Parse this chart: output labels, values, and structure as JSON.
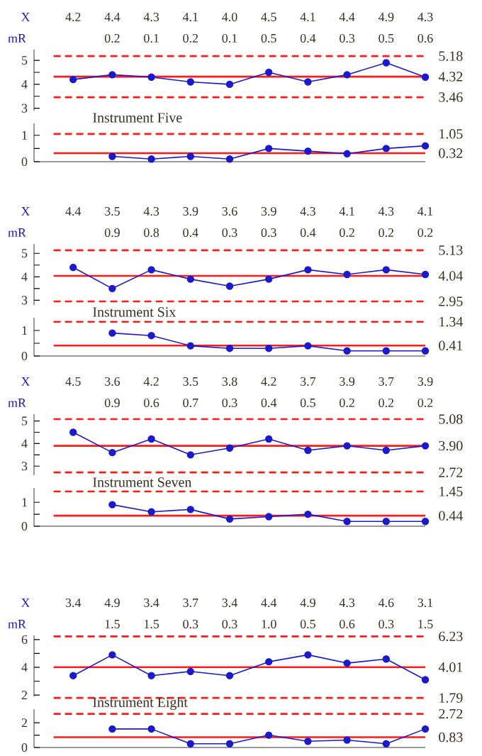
{
  "chart_data": [
    {
      "type": "line",
      "title": "Instrument Five",
      "categories": [
        null,
        null,
        null,
        null,
        null,
        null,
        null,
        null,
        null,
        null
      ],
      "series": [
        {
          "name": "X",
          "color": "#1a1acc",
          "values": [
            4.2,
            4.4,
            4.3,
            4.1,
            4.0,
            4.5,
            4.1,
            4.4,
            4.9,
            4.3
          ],
          "value_labels": [
            "4.2",
            "4.4",
            "4.3",
            "4.1",
            "4.0",
            "4.5",
            "4.1",
            "4.4",
            "4.9",
            "4.3"
          ]
        }
      ],
      "ylim": [
        2.9,
        5.45
      ],
      "yticks": [
        3,
        {
          "value": 3.5,
          "label": null
        },
        4,
        {
          "value": 4.5,
          "label": null
        },
        5
      ],
      "ref_lines": [
        {
          "axis": "y",
          "value": 5.18,
          "label": "5.18",
          "color": "#ff1a1a",
          "line_style": "dashed"
        },
        {
          "axis": "y",
          "value": 4.32,
          "label": "4.32",
          "color": "#ff1a1a",
          "line_style": "solid"
        },
        {
          "axis": "y",
          "value": 3.46,
          "label": "3.46",
          "color": "#ff1a1a",
          "line_style": "dashed"
        }
      ],
      "tick_labels": "y",
      "marker": "circle",
      "line_style": "solid"
    },
    {
      "type": "line",
      "categories": [
        null,
        null,
        null,
        null,
        null,
        null,
        null,
        null,
        null,
        null
      ],
      "series": [
        {
          "name": "mR",
          "color": "#1a1acc",
          "values": [
            null,
            0.2,
            0.1,
            0.2,
            0.1,
            0.5,
            0.4,
            0.3,
            0.5,
            0.6
          ],
          "value_labels": [
            null,
            "0.2",
            "0.1",
            "0.2",
            "0.1",
            "0.5",
            "0.4",
            "0.3",
            "0.5",
            "0.6"
          ]
        }
      ],
      "ylim": [
        0,
        1.45
      ],
      "yticks": [
        0,
        {
          "value": 0.5,
          "label": null
        },
        1
      ],
      "ref_lines": [
        {
          "axis": "y",
          "value": 1.05,
          "label": "1.05",
          "color": "#ff1a1a",
          "line_style": "dashed"
        },
        {
          "axis": "y",
          "value": 0.32,
          "label": "0.32",
          "color": "#ff1a1a",
          "line_style": "solid"
        }
      ],
      "tick_labels": "y",
      "marker": "circle",
      "line_style": "solid"
    },
    {
      "type": "line",
      "title": "Instrument Six",
      "categories": [
        null,
        null,
        null,
        null,
        null,
        null,
        null,
        null,
        null,
        null
      ],
      "series": [
        {
          "name": "X",
          "color": "#1a1acc",
          "values": [
            4.4,
            3.5,
            4.3,
            3.9,
            3.6,
            3.9,
            4.3,
            4.1,
            4.3,
            4.1
          ],
          "value_labels": [
            "4.4",
            "3.5",
            "4.3",
            "3.9",
            "3.6",
            "3.9",
            "4.3",
            "4.1",
            "4.3",
            "4.1"
          ]
        }
      ],
      "ylim": [
        2.8,
        5.4
      ],
      "yticks": [
        3,
        {
          "value": 3.5,
          "label": null
        },
        4,
        {
          "value": 4.5,
          "label": null
        },
        5
      ],
      "ref_lines": [
        {
          "axis": "y",
          "value": 5.13,
          "label": "5.13",
          "color": "#ff1a1a",
          "line_style": "dashed"
        },
        {
          "axis": "y",
          "value": 4.04,
          "label": "4.04",
          "color": "#ff1a1a",
          "line_style": "solid"
        },
        {
          "axis": "y",
          "value": 2.95,
          "label": "2.95",
          "color": "#ff1a1a",
          "line_style": "dashed"
        }
      ],
      "tick_labels": "y",
      "marker": "circle",
      "line_style": "solid"
    },
    {
      "type": "line",
      "categories": [
        null,
        null,
        null,
        null,
        null,
        null,
        null,
        null,
        null,
        null
      ],
      "series": [
        {
          "name": "mR",
          "color": "#1a1acc",
          "values": [
            null,
            0.9,
            0.8,
            0.4,
            0.3,
            0.3,
            0.4,
            0.2,
            0.2,
            0.2
          ],
          "value_labels": [
            null,
            "0.9",
            "0.8",
            "0.4",
            "0.3",
            "0.3",
            "0.4",
            "0.2",
            "0.2",
            "0.2"
          ]
        }
      ],
      "ylim": [
        0,
        1.5
      ],
      "yticks": [
        0,
        {
          "value": 0.5,
          "label": null
        },
        1
      ],
      "ref_lines": [
        {
          "axis": "y",
          "value": 1.34,
          "label": "1.34",
          "color": "#ff1a1a",
          "line_style": "dashed"
        },
        {
          "axis": "y",
          "value": 0.41,
          "label": "0.41",
          "color": "#ff1a1a",
          "line_style": "solid"
        }
      ],
      "tick_labels": "y",
      "marker": "circle",
      "line_style": "solid"
    },
    {
      "type": "line",
      "title": "Instrument Seven",
      "categories": [
        null,
        null,
        null,
        null,
        null,
        null,
        null,
        null,
        null,
        null
      ],
      "series": [
        {
          "name": "X",
          "color": "#1a1acc",
          "values": [
            4.5,
            3.6,
            4.2,
            3.5,
            3.8,
            4.2,
            3.7,
            3.9,
            3.7,
            3.9
          ],
          "value_labels": [
            "4.5",
            "3.6",
            "4.2",
            "3.5",
            "3.8",
            "4.2",
            "3.7",
            "3.9",
            "3.7",
            "3.9"
          ]
        }
      ],
      "ylim": [
        2.6,
        5.3
      ],
      "yticks": [
        3,
        {
          "value": 3.5,
          "label": null
        },
        4,
        {
          "value": 4.5,
          "label": null
        },
        5
      ],
      "ref_lines": [
        {
          "axis": "y",
          "value": 5.08,
          "label": "5.08",
          "color": "#ff1a1a",
          "line_style": "dashed"
        },
        {
          "axis": "y",
          "value": 3.9,
          "label": "3.90",
          "color": "#ff1a1a",
          "line_style": "solid"
        },
        {
          "axis": "y",
          "value": 2.72,
          "label": "2.72",
          "color": "#ff1a1a",
          "line_style": "dashed"
        }
      ],
      "tick_labels": "y",
      "marker": "circle",
      "line_style": "solid"
    },
    {
      "type": "line",
      "categories": [
        null,
        null,
        null,
        null,
        null,
        null,
        null,
        null,
        null,
        null
      ],
      "series": [
        {
          "name": "mR",
          "color": "#1a1acc",
          "values": [
            null,
            0.9,
            0.6,
            0.7,
            0.3,
            0.4,
            0.5,
            0.2,
            0.2,
            0.2
          ],
          "value_labels": [
            null,
            "0.9",
            "0.6",
            "0.7",
            "0.3",
            "0.4",
            "0.5",
            "0.2",
            "0.2",
            "0.2"
          ]
        }
      ],
      "ylim": [
        0,
        1.6
      ],
      "yticks": [
        0,
        {
          "value": 0.5,
          "label": null
        },
        1
      ],
      "ref_lines": [
        {
          "axis": "y",
          "value": 1.45,
          "label": "1.45",
          "color": "#ff1a1a",
          "line_style": "dashed"
        },
        {
          "axis": "y",
          "value": 0.44,
          "label": "0.44",
          "color": "#ff1a1a",
          "line_style": "solid"
        }
      ],
      "tick_labels": "y",
      "marker": "circle",
      "line_style": "solid"
    },
    {
      "type": "line",
      "title": "Instrument Eight",
      "categories": [
        null,
        null,
        null,
        null,
        null,
        null,
        null,
        null,
        null,
        null
      ],
      "series": [
        {
          "name": "X",
          "color": "#1a1acc",
          "values": [
            3.4,
            4.9,
            3.4,
            3.7,
            3.4,
            4.4,
            4.9,
            4.3,
            4.6,
            3.1
          ],
          "value_labels": [
            "3.4",
            "4.9",
            "3.4",
            "3.7",
            "3.4",
            "4.4",
            "4.9",
            "4.3",
            "4.6",
            "3.1"
          ]
        }
      ],
      "ylim": [
        1.9,
        6.3
      ],
      "yticks": [
        2,
        {
          "value": 3,
          "label": null
        },
        4,
        {
          "value": 5,
          "label": null
        },
        6
      ],
      "ref_lines": [
        {
          "axis": "y",
          "value": 6.23,
          "label": "6.23",
          "color": "#ff1a1a",
          "line_style": "dashed"
        },
        {
          "axis": "y",
          "value": 4.01,
          "label": "4.01",
          "color": "#ff1a1a",
          "line_style": "solid"
        },
        {
          "axis": "y",
          "value": 1.79,
          "label": "1.79",
          "color": "#ff1a1a",
          "line_style": "dashed"
        }
      ],
      "tick_labels": "y",
      "marker": "circle",
      "line_style": "solid"
    },
    {
      "type": "line",
      "categories": [
        null,
        null,
        null,
        null,
        null,
        null,
        null,
        null,
        null,
        null
      ],
      "series": [
        {
          "name": "mR",
          "color": "#1a1acc",
          "values": [
            null,
            1.5,
            1.5,
            0.3,
            0.3,
            1.0,
            0.5,
            0.6,
            0.3,
            1.5
          ],
          "value_labels": [
            null,
            "1.5",
            "1.5",
            "0.3",
            "0.3",
            "1.0",
            "0.5",
            "0.6",
            "0.3",
            "1.5"
          ]
        }
      ],
      "ylim": [
        0,
        3.1
      ],
      "yticks": [
        0,
        {
          "value": 1,
          "label": null
        },
        2
      ],
      "ref_lines": [
        {
          "axis": "y",
          "value": 2.72,
          "label": "2.72",
          "color": "#ff1a1a",
          "line_style": "dashed"
        },
        {
          "axis": "y",
          "value": 0.83,
          "label": "0.83",
          "color": "#ff1a1a",
          "line_style": "solid"
        }
      ],
      "tick_labels": "y",
      "marker": "circle",
      "line_style": "solid"
    }
  ]
}
